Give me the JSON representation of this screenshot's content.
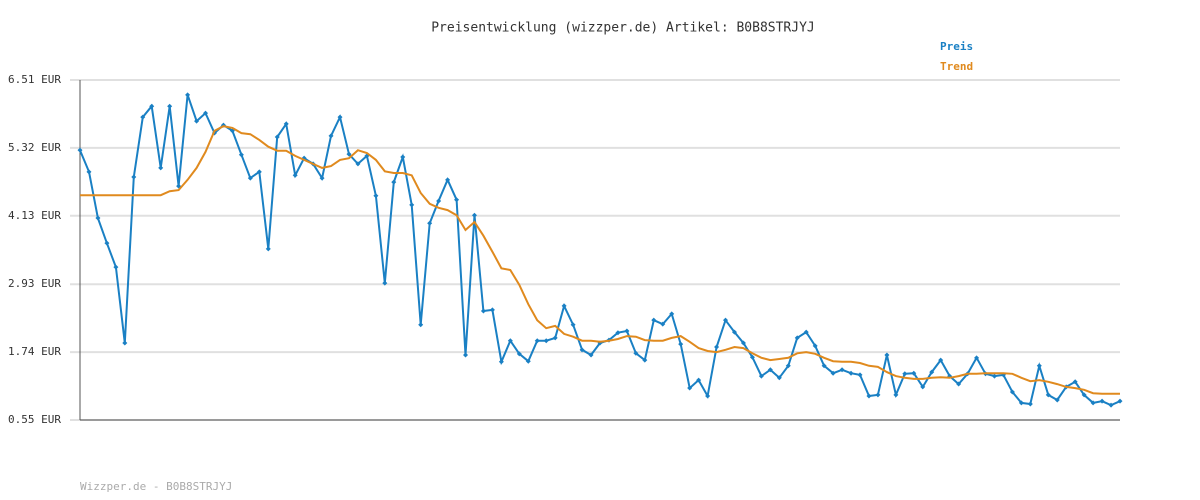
{
  "chart_data": {
    "type": "line",
    "title": "Preisentwicklung (wizzper.de) Artikel: B0B8STRJYJ",
    "footer": "Wizzper.de - B0B8STRJYJ",
    "ylim": [
      0.55,
      6.51
    ],
    "yticks": [
      {
        "value": 0.55,
        "label": "0.55 EUR"
      },
      {
        "value": 1.74,
        "label": "1.74 EUR"
      },
      {
        "value": 2.93,
        "label": "2.93 EUR"
      },
      {
        "value": 4.13,
        "label": "4.13 EUR"
      },
      {
        "value": 5.32,
        "label": "5.32 EUR"
      },
      {
        "value": 6.51,
        "label": "6.51 EUR"
      }
    ],
    "grid": true,
    "legend": "top-right",
    "series": [
      {
        "name": "Preis",
        "color": "#1a80c4",
        "markers": true,
        "values": [
          5.28,
          4.9,
          4.09,
          3.65,
          3.23,
          1.9,
          4.81,
          5.86,
          6.05,
          4.97,
          6.05,
          4.65,
          6.25,
          5.79,
          5.93,
          5.58,
          5.72,
          5.62,
          5.2,
          4.79,
          4.9,
          3.55,
          5.51,
          5.74,
          4.84,
          5.14,
          5.04,
          4.79,
          5.53,
          5.86,
          5.21,
          5.04,
          5.18,
          4.48,
          2.95,
          4.72,
          5.16,
          4.32,
          2.22,
          4.0,
          4.39,
          4.76,
          4.41,
          1.69,
          4.14,
          2.46,
          2.48,
          1.57,
          1.94,
          1.71,
          1.58,
          1.94,
          1.94,
          1.99,
          2.55,
          2.22,
          1.78,
          1.69,
          1.9,
          1.95,
          2.08,
          2.11,
          1.72,
          1.6,
          2.3,
          2.23,
          2.41,
          1.88,
          1.11,
          1.25,
          0.97,
          1.83,
          2.3,
          2.09,
          1.9,
          1.65,
          1.32,
          1.43,
          1.29,
          1.5,
          1.99,
          2.09,
          1.85,
          1.5,
          1.37,
          1.43,
          1.37,
          1.34,
          0.97,
          0.99,
          1.69,
          0.99,
          1.36,
          1.37,
          1.13,
          1.39,
          1.6,
          1.32,
          1.18,
          1.36,
          1.64,
          1.36,
          1.32,
          1.34,
          1.04,
          0.85,
          0.83,
          1.5,
          0.99,
          0.9,
          1.13,
          1.22,
          0.99,
          0.85,
          0.88,
          0.81,
          0.88
        ]
      },
      {
        "name": "Trend",
        "color": "#e08a1e",
        "markers": false,
        "values": [
          4.49,
          4.49,
          4.49,
          4.49,
          4.49,
          4.49,
          4.49,
          4.49,
          4.49,
          4.49,
          4.56,
          4.58,
          4.76,
          4.97,
          5.25,
          5.62,
          5.7,
          5.67,
          5.58,
          5.56,
          5.46,
          5.34,
          5.27,
          5.27,
          5.18,
          5.11,
          5.04,
          4.97,
          5.0,
          5.11,
          5.14,
          5.28,
          5.23,
          5.11,
          4.91,
          4.88,
          4.88,
          4.84,
          4.53,
          4.34,
          4.27,
          4.23,
          4.14,
          3.88,
          4.02,
          3.78,
          3.5,
          3.21,
          3.18,
          2.92,
          2.58,
          2.3,
          2.16,
          2.2,
          2.06,
          2.01,
          1.94,
          1.94,
          1.92,
          1.94,
          1.97,
          2.02,
          2.01,
          1.95,
          1.94,
          1.94,
          1.99,
          2.02,
          1.92,
          1.81,
          1.76,
          1.74,
          1.78,
          1.83,
          1.81,
          1.72,
          1.64,
          1.6,
          1.62,
          1.64,
          1.72,
          1.74,
          1.71,
          1.64,
          1.58,
          1.57,
          1.57,
          1.55,
          1.5,
          1.48,
          1.39,
          1.32,
          1.29,
          1.27,
          1.27,
          1.29,
          1.3,
          1.29,
          1.32,
          1.36,
          1.36,
          1.37,
          1.37,
          1.37,
          1.36,
          1.29,
          1.23,
          1.25,
          1.22,
          1.18,
          1.13,
          1.11,
          1.08,
          1.02,
          1.01,
          1.01,
          1.01
        ]
      }
    ]
  }
}
